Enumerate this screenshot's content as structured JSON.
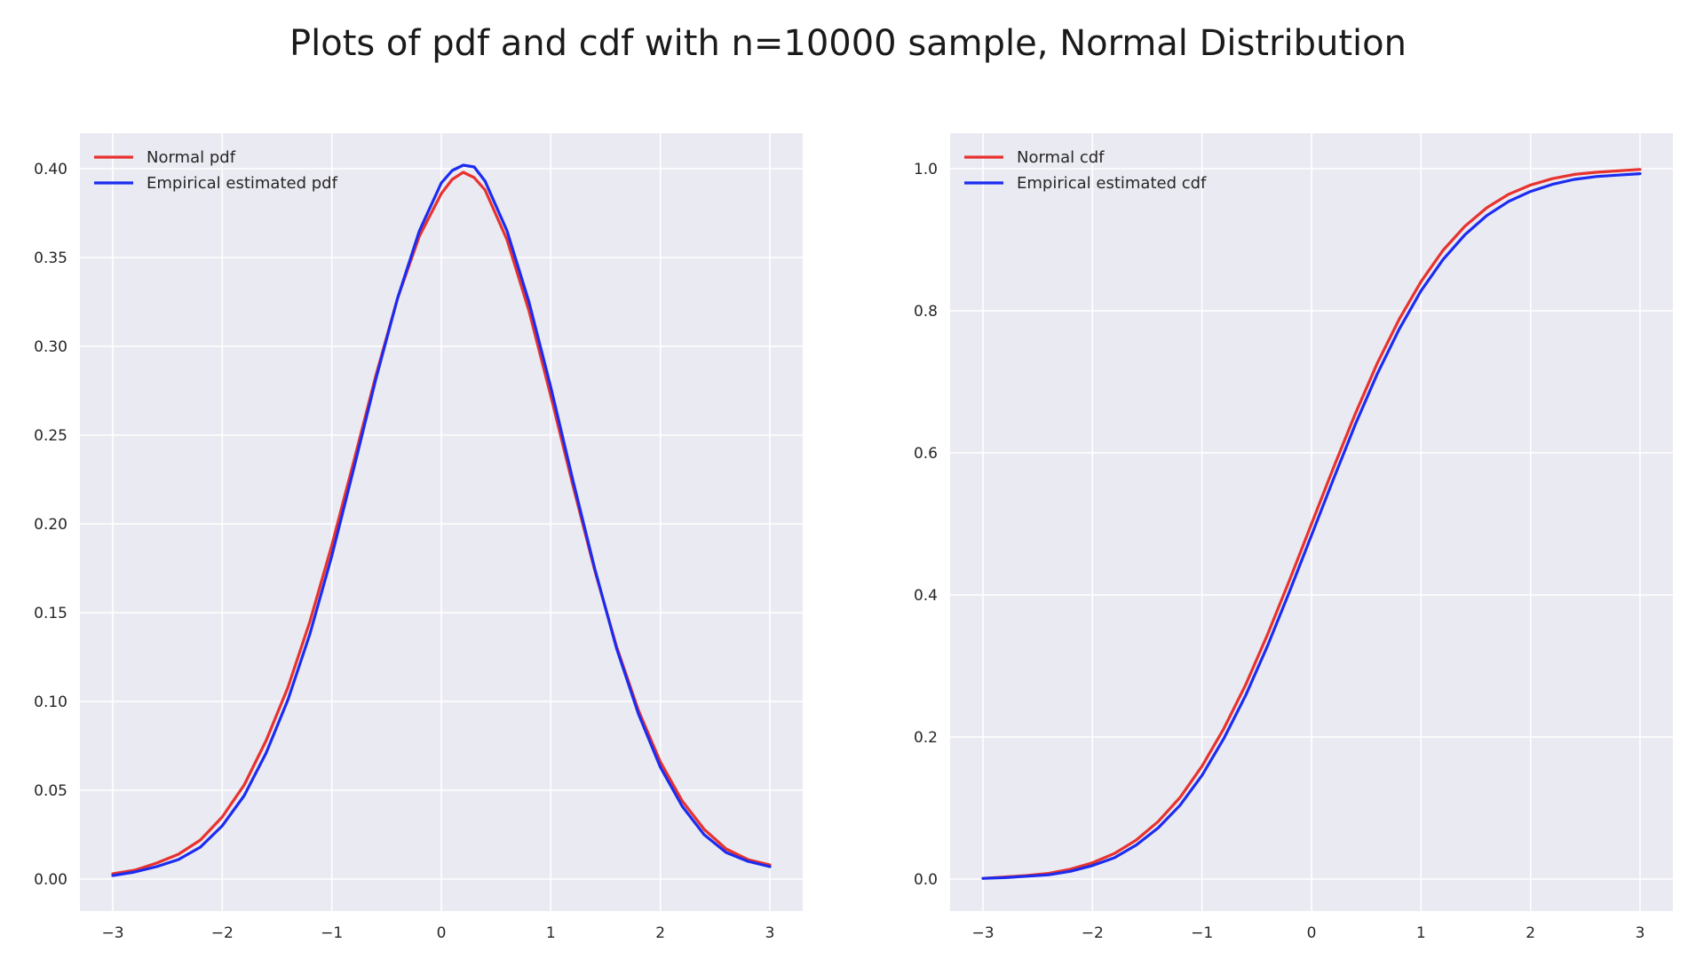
{
  "title": "Plots of pdf and cdf with n=10000 sample, Normal Distribution",
  "colors": {
    "panel_bg": "#EAEAF2",
    "grid": "#FFFFFF",
    "red": "#E8322E",
    "blue": "#1B2CF0"
  },
  "chart_data": [
    {
      "type": "line",
      "xlim": [
        -3.3,
        3.3
      ],
      "ylim": [
        -0.018,
        0.42
      ],
      "xticks": [
        -3,
        -2,
        -1,
        0,
        1,
        2,
        3
      ],
      "xtick_labels": [
        "−3",
        "−2",
        "−1",
        "0",
        "1",
        "2",
        "3"
      ],
      "yticks": [
        0.0,
        0.05,
        0.1,
        0.15,
        0.2,
        0.25,
        0.3,
        0.35,
        0.4
      ],
      "ytick_labels": [
        "0.00",
        "0.05",
        "0.10",
        "0.15",
        "0.20",
        "0.25",
        "0.30",
        "0.35",
        "0.40"
      ],
      "grid": true,
      "legend_position": "top-left",
      "series": [
        {
          "name": "Normal pdf",
          "color": "#E8322E",
          "x": [
            -3.0,
            -2.8,
            -2.6,
            -2.4,
            -2.2,
            -2.0,
            -1.8,
            -1.6,
            -1.4,
            -1.2,
            -1.0,
            -0.8,
            -0.6,
            -0.4,
            -0.2,
            0.0,
            0.1,
            0.2,
            0.3,
            0.4,
            0.6,
            0.8,
            1.0,
            1.2,
            1.4,
            1.6,
            1.8,
            2.0,
            2.2,
            2.4,
            2.6,
            2.8,
            3.0
          ],
          "y": [
            0.003,
            0.005,
            0.009,
            0.014,
            0.022,
            0.035,
            0.053,
            0.078,
            0.108,
            0.145,
            0.188,
            0.235,
            0.283,
            0.327,
            0.362,
            0.386,
            0.394,
            0.398,
            0.395,
            0.388,
            0.36,
            0.32,
            0.272,
            0.222,
            0.174,
            0.131,
            0.095,
            0.066,
            0.044,
            0.028,
            0.017,
            0.011,
            0.008
          ]
        },
        {
          "name": "Empirical estimated pdf",
          "color": "#1B2CF0",
          "x": [
            -3.0,
            -2.8,
            -2.6,
            -2.4,
            -2.2,
            -2.0,
            -1.8,
            -1.6,
            -1.4,
            -1.2,
            -1.0,
            -0.8,
            -0.6,
            -0.4,
            -0.2,
            0.0,
            0.1,
            0.2,
            0.3,
            0.4,
            0.6,
            0.8,
            1.0,
            1.2,
            1.4,
            1.6,
            1.8,
            2.0,
            2.2,
            2.4,
            2.6,
            2.8,
            3.0
          ],
          "y": [
            0.002,
            0.004,
            0.007,
            0.011,
            0.018,
            0.03,
            0.047,
            0.071,
            0.101,
            0.138,
            0.182,
            0.231,
            0.281,
            0.327,
            0.365,
            0.392,
            0.399,
            0.402,
            0.401,
            0.393,
            0.365,
            0.325,
            0.277,
            0.225,
            0.175,
            0.13,
            0.093,
            0.063,
            0.041,
            0.025,
            0.015,
            0.01,
            0.007
          ]
        }
      ]
    },
    {
      "type": "line",
      "xlim": [
        -3.3,
        3.3
      ],
      "ylim": [
        -0.045,
        1.05
      ],
      "xticks": [
        -3,
        -2,
        -1,
        0,
        1,
        2,
        3
      ],
      "xtick_labels": [
        "−3",
        "−2",
        "−1",
        "0",
        "1",
        "2",
        "3"
      ],
      "yticks": [
        0.0,
        0.2,
        0.4,
        0.6,
        0.8,
        1.0
      ],
      "ytick_labels": [
        "0.0",
        "0.2",
        "0.4",
        "0.6",
        "0.8",
        "1.0"
      ],
      "grid": true,
      "legend_position": "top-left",
      "series": [
        {
          "name": "Normal cdf",
          "color": "#E8322E",
          "x": [
            -3.0,
            -2.8,
            -2.6,
            -2.4,
            -2.2,
            -2.0,
            -1.8,
            -1.6,
            -1.4,
            -1.2,
            -1.0,
            -0.8,
            -0.6,
            -0.4,
            -0.2,
            0.0,
            0.2,
            0.4,
            0.6,
            0.8,
            1.0,
            1.2,
            1.4,
            1.6,
            1.8,
            2.0,
            2.2,
            2.4,
            2.6,
            2.8,
            3.0
          ],
          "y": [
            0.001,
            0.003,
            0.005,
            0.008,
            0.014,
            0.023,
            0.036,
            0.055,
            0.081,
            0.115,
            0.159,
            0.212,
            0.274,
            0.345,
            0.421,
            0.5,
            0.579,
            0.655,
            0.726,
            0.788,
            0.841,
            0.885,
            0.919,
            0.945,
            0.964,
            0.977,
            0.986,
            0.992,
            0.995,
            0.997,
            0.999
          ]
        },
        {
          "name": "Empirical estimated cdf",
          "color": "#1B2CF0",
          "x": [
            -3.0,
            -2.8,
            -2.6,
            -2.4,
            -2.2,
            -2.0,
            -1.8,
            -1.6,
            -1.4,
            -1.2,
            -1.0,
            -0.8,
            -0.6,
            -0.4,
            -0.2,
            0.0,
            0.2,
            0.4,
            0.6,
            0.8,
            1.0,
            1.2,
            1.4,
            1.6,
            1.8,
            2.0,
            2.2,
            2.4,
            2.6,
            2.8,
            3.0
          ],
          "y": [
            0.001,
            0.002,
            0.004,
            0.006,
            0.011,
            0.019,
            0.03,
            0.048,
            0.072,
            0.104,
            0.146,
            0.198,
            0.259,
            0.329,
            0.405,
            0.484,
            0.563,
            0.64,
            0.711,
            0.774,
            0.828,
            0.872,
            0.907,
            0.934,
            0.954,
            0.968,
            0.978,
            0.985,
            0.989,
            0.991,
            0.993
          ]
        }
      ]
    }
  ]
}
